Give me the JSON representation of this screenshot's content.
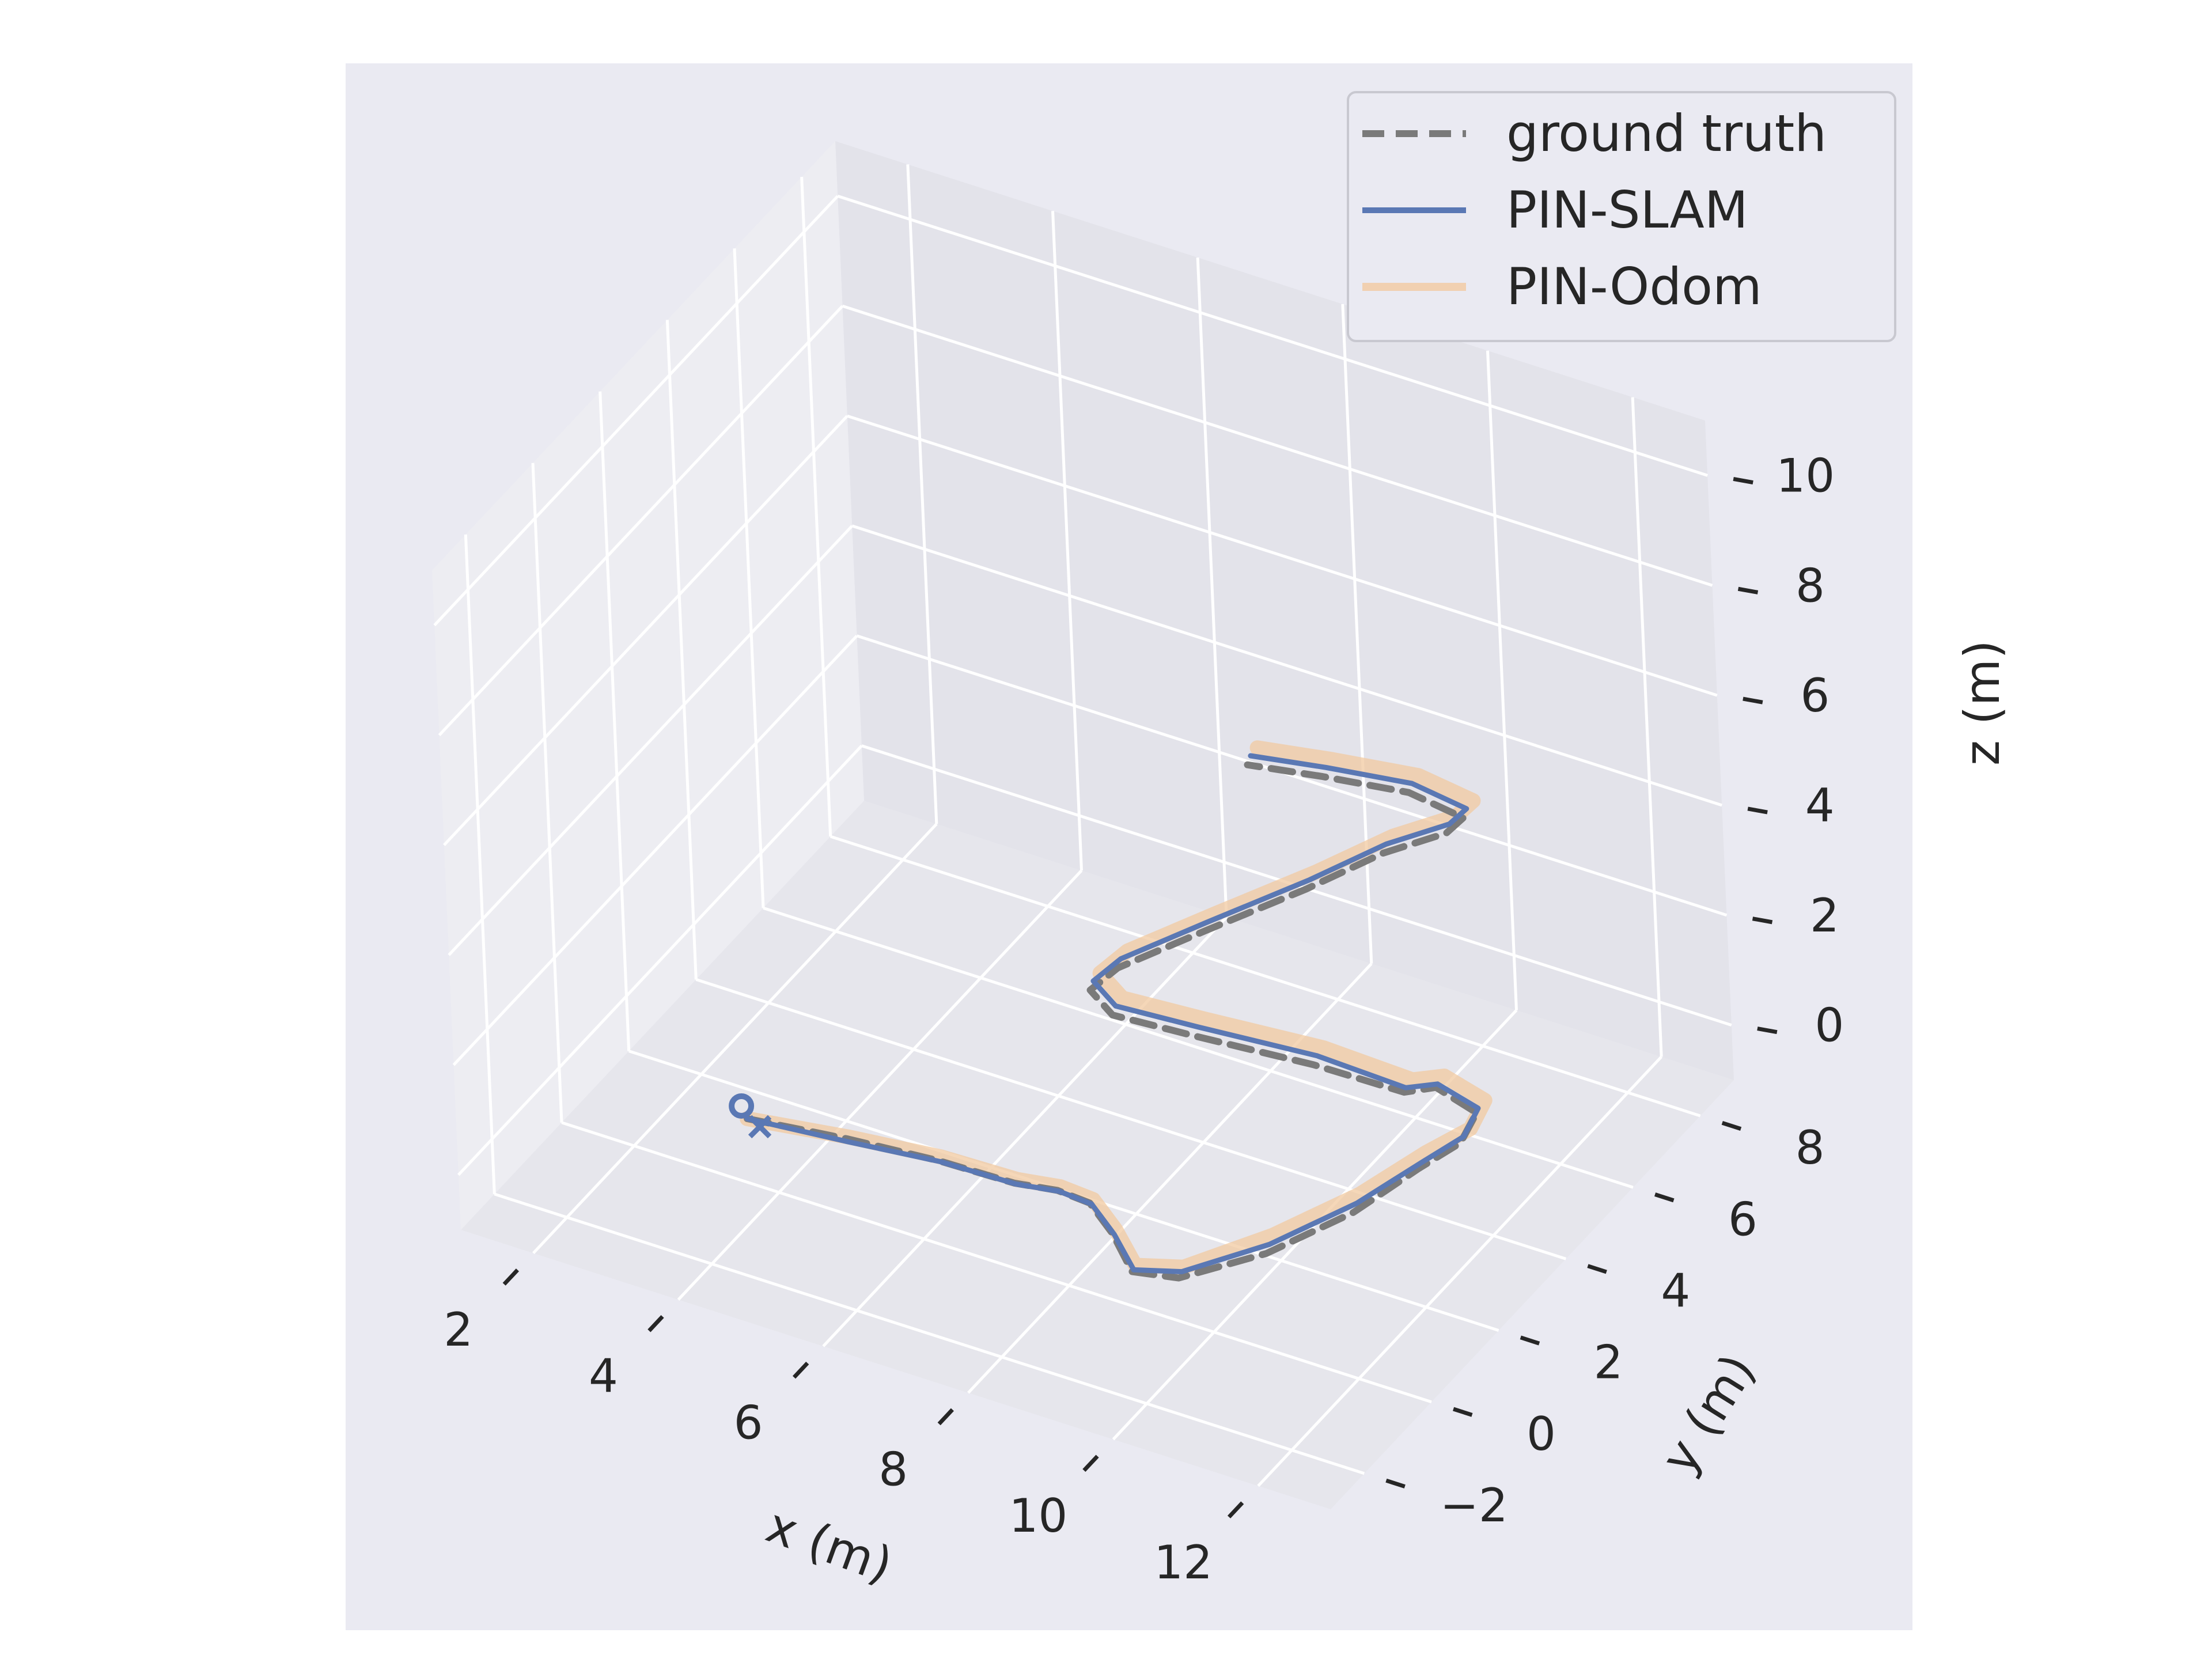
{
  "chart_data": {
    "type": "line",
    "projection": "3d",
    "title": "",
    "xlabel": "x (m)",
    "ylabel": "y (m)",
    "zlabel": "z (m)",
    "xticks": [
      2,
      4,
      6,
      8,
      10,
      12
    ],
    "yticks": [
      -2,
      0,
      2,
      4,
      6,
      8
    ],
    "zticks": [
      0,
      2,
      4,
      6,
      8,
      10
    ],
    "xtick_labels": [
      "2",
      "4",
      "6",
      "8",
      "10",
      "12"
    ],
    "ytick_labels": [
      "−2",
      "0",
      "2",
      "4",
      "6",
      "8"
    ],
    "ztick_labels": [
      "0",
      "2",
      "4",
      "6",
      "8",
      "10"
    ],
    "xlim": [
      1,
      13
    ],
    "ylim": [
      -3,
      9
    ],
    "zlim": [
      -1,
      11
    ],
    "grid": true,
    "legend_position": "top-right",
    "background_color": "#eaeaf2",
    "series": [
      {
        "name": "ground truth",
        "style": "dashed",
        "color": "#7a7a7a",
        "points": [
          [
            3.5,
            0.2,
            0
          ],
          [
            4.8,
            0.4,
            0.05
          ],
          [
            6.0,
            0.5,
            0.1
          ],
          [
            7.0,
            0.6,
            0.05
          ],
          [
            7.5,
            0.8,
            0
          ],
          [
            7.8,
            1.1,
            -0.3
          ],
          [
            8.0,
            1.3,
            -0.9
          ],
          [
            8.3,
            1.2,
            -1.4
          ],
          [
            8.8,
            1.5,
            -1.5
          ],
          [
            9.6,
            2.4,
            -1.3
          ],
          [
            10.4,
            3.3,
            -0.8
          ],
          [
            11.0,
            4.0,
            -0.2
          ],
          [
            11.3,
            4.6,
            0
          ],
          [
            11.2,
            5.3,
            0.05
          ],
          [
            10.5,
            5.6,
            0.02
          ],
          [
            10.2,
            5.3,
            0
          ],
          [
            9.2,
            4.8,
            0.4
          ],
          [
            8.0,
            3.9,
            1.0
          ],
          [
            7.2,
            3.2,
            1.5
          ],
          [
            7.0,
            3.0,
            2.0
          ],
          [
            7.3,
            3.2,
            2.4
          ],
          [
            8.2,
            3.9,
            3.0
          ],
          [
            9.2,
            4.8,
            3.6
          ],
          [
            10.0,
            5.4,
            4.2
          ],
          [
            10.7,
            5.8,
            4.6
          ],
          [
            10.9,
            5.9,
            4.9
          ],
          [
            10.3,
            5.6,
            5.3
          ],
          [
            9.4,
            5.0,
            5.6
          ],
          [
            8.6,
            4.5,
            5.8
          ]
        ]
      },
      {
        "name": "PIN-SLAM",
        "style": "solid",
        "color": "#5a78b4",
        "points": [
          [
            3.5,
            0.2,
            0
          ],
          [
            4.8,
            0.4,
            0.0
          ],
          [
            6.0,
            0.55,
            0.05
          ],
          [
            7.0,
            0.65,
            0.0
          ],
          [
            7.5,
            0.85,
            -0.05
          ],
          [
            7.8,
            1.15,
            -0.35
          ],
          [
            8.0,
            1.35,
            -0.95
          ],
          [
            8.3,
            1.25,
            -1.4
          ],
          [
            8.8,
            1.6,
            -1.45
          ],
          [
            9.6,
            2.5,
            -1.2
          ],
          [
            10.4,
            3.4,
            -0.7
          ],
          [
            11.0,
            4.1,
            -0.15
          ],
          [
            11.3,
            4.7,
            0.05
          ],
          [
            11.2,
            5.35,
            0.1
          ],
          [
            10.5,
            5.65,
            0.05
          ],
          [
            10.2,
            5.35,
            0.05
          ],
          [
            9.2,
            4.9,
            0.5
          ],
          [
            8.0,
            4.0,
            1.1
          ],
          [
            7.2,
            3.3,
            1.6
          ],
          [
            7.0,
            3.1,
            2.1
          ],
          [
            7.3,
            3.3,
            2.5
          ],
          [
            8.2,
            4.0,
            3.1
          ],
          [
            9.2,
            4.9,
            3.7
          ],
          [
            10.0,
            5.5,
            4.3
          ],
          [
            10.7,
            5.9,
            4.7
          ],
          [
            10.9,
            6.0,
            5.0
          ],
          [
            10.3,
            5.7,
            5.4
          ],
          [
            9.4,
            5.1,
            5.7
          ],
          [
            8.6,
            4.6,
            5.9
          ]
        ]
      },
      {
        "name": "PIN-Odom",
        "style": "solid",
        "color": "#f2c9a0",
        "points": [
          [
            3.5,
            0.2,
            0
          ],
          [
            4.8,
            0.45,
            0.05
          ],
          [
            6.0,
            0.6,
            0.1
          ],
          [
            7.0,
            0.7,
            0.05
          ],
          [
            7.5,
            0.9,
            0.0
          ],
          [
            7.8,
            1.2,
            -0.3
          ],
          [
            8.0,
            1.4,
            -0.9
          ],
          [
            8.3,
            1.3,
            -1.35
          ],
          [
            8.8,
            1.65,
            -1.4
          ],
          [
            9.6,
            2.6,
            -1.1
          ],
          [
            10.4,
            3.5,
            -0.6
          ],
          [
            11.0,
            4.2,
            -0.05
          ],
          [
            11.35,
            4.8,
            0.15
          ],
          [
            11.25,
            5.45,
            0.2
          ],
          [
            10.55,
            5.75,
            0.15
          ],
          [
            10.25,
            5.45,
            0.15
          ],
          [
            9.25,
            5.0,
            0.6
          ],
          [
            8.05,
            4.1,
            1.2
          ],
          [
            7.25,
            3.4,
            1.7
          ],
          [
            7.05,
            3.2,
            2.2
          ],
          [
            7.35,
            3.4,
            2.6
          ],
          [
            8.25,
            4.1,
            3.2
          ],
          [
            9.25,
            5.0,
            3.8
          ],
          [
            10.05,
            5.6,
            4.4
          ],
          [
            10.75,
            6.0,
            4.8
          ],
          [
            10.95,
            6.1,
            5.1
          ],
          [
            10.35,
            5.8,
            5.5
          ],
          [
            9.45,
            5.2,
            5.8
          ],
          [
            8.65,
            4.7,
            6.0
          ]
        ]
      }
    ]
  }
}
